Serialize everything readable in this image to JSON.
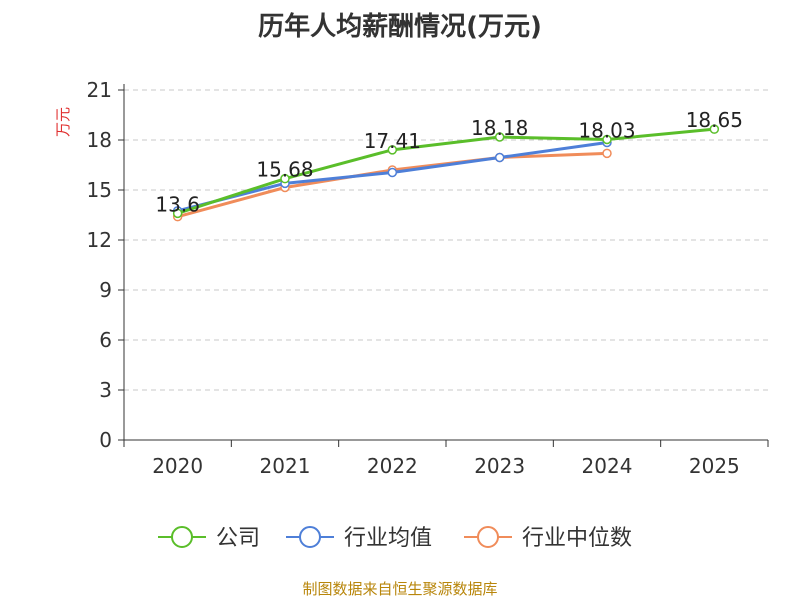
{
  "title": "历年人均薪酬情况(万元)",
  "footer": "制图数据来自恒生聚源数据库",
  "chart_data": {
    "type": "line",
    "title": "历年人均薪酬情况(万元)",
    "xlabel": "",
    "ylabel": "万元",
    "ylim": [
      0,
      21
    ],
    "yticks": [
      0,
      3,
      6,
      9,
      12,
      15,
      18,
      21
    ],
    "categories": [
      "2020",
      "2021",
      "2022",
      "2023",
      "2024",
      "2025"
    ],
    "grid": true,
    "legend_position": "bottom",
    "series": [
      {
        "name": "公司",
        "color": "#5abe2a",
        "values": [
          13.6,
          15.68,
          17.41,
          18.18,
          18.03,
          18.65
        ],
        "labels": [
          "13.6",
          "15.68",
          "17.41",
          "18.18",
          "18.03",
          "18.65"
        ]
      },
      {
        "name": "行业均值",
        "color": "#4e7fd8",
        "values": [
          13.75,
          15.4,
          16.05,
          16.95,
          17.85,
          null
        ]
      },
      {
        "name": "行业中位数",
        "color": "#f08c5a",
        "values": [
          13.4,
          15.15,
          16.2,
          16.95,
          17.2,
          null
        ]
      }
    ]
  }
}
